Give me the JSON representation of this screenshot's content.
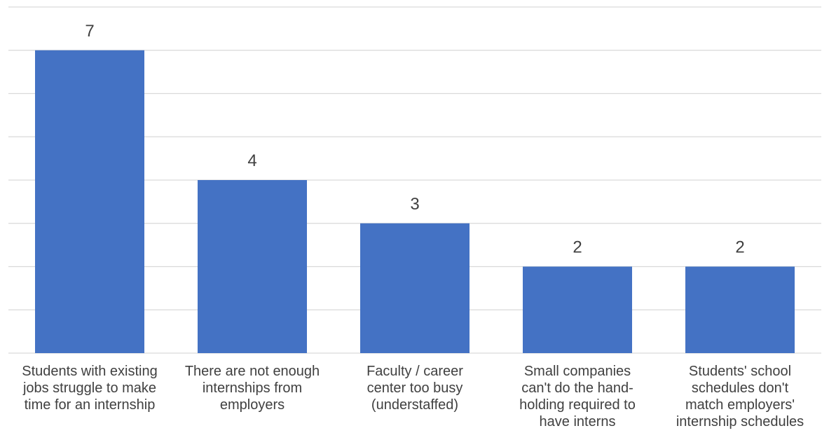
{
  "chart_data": {
    "type": "bar",
    "categories": [
      [
        "Students with existing",
        "jobs struggle to make",
        "time for an internship"
      ],
      [
        "There are not enough",
        "internships from",
        "employers"
      ],
      [
        "Faculty / career",
        "center too busy",
        "(understaffed)"
      ],
      [
        "Small companies",
        "can't do the hand-",
        "holding required to",
        "have interns"
      ],
      [
        "Students' school",
        "schedules don't",
        "match employers'",
        "internship schedules"
      ]
    ],
    "values": [
      7,
      4,
      3,
      2,
      2
    ],
    "title": "",
    "xlabel": "",
    "ylabel": "",
    "ylim": [
      0,
      8
    ],
    "grid": true,
    "bar_color": "#4472c4",
    "show_data_labels": true,
    "show_y_tick_labels": false
  }
}
